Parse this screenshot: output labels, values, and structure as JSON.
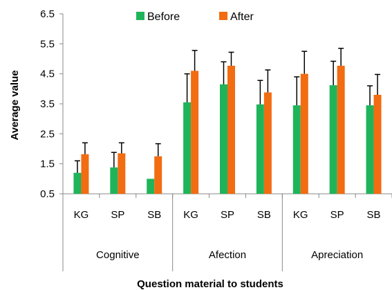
{
  "chart_data": {
    "type": "bar",
    "xlabel": "Question material to students",
    "ylabel": "Average value",
    "ylim": [
      0.5,
      6.5
    ],
    "yticks": [
      "0.5",
      "1.5",
      "2.5",
      "3.5",
      "4.5",
      "5.5",
      "6.5"
    ],
    "legend_position": "top-center",
    "groups": [
      {
        "name": "Cognitive",
        "categories": [
          "KG",
          "SP",
          "SB"
        ]
      },
      {
        "name": "Afection",
        "categories": [
          "KG",
          "SP",
          "SB"
        ]
      },
      {
        "name": "Apreciation",
        "categories": [
          "KG",
          "SP",
          "SB"
        ]
      }
    ],
    "series": [
      {
        "name": "Before",
        "color": "#1fb45a",
        "values": [
          1.2,
          1.38,
          1.0,
          3.55,
          4.15,
          3.48,
          3.45,
          4.12,
          3.45
        ],
        "error_plus": [
          0.4,
          0.5,
          0.0,
          0.95,
          0.75,
          0.8,
          0.95,
          0.8,
          0.65
        ]
      },
      {
        "name": "After",
        "color": "#f26c12",
        "values": [
          1.82,
          1.85,
          1.75,
          4.6,
          4.77,
          3.88,
          4.5,
          4.77,
          3.8
        ],
        "error_plus": [
          0.38,
          0.35,
          0.42,
          0.68,
          0.45,
          0.75,
          0.75,
          0.58,
          0.68
        ]
      }
    ]
  }
}
